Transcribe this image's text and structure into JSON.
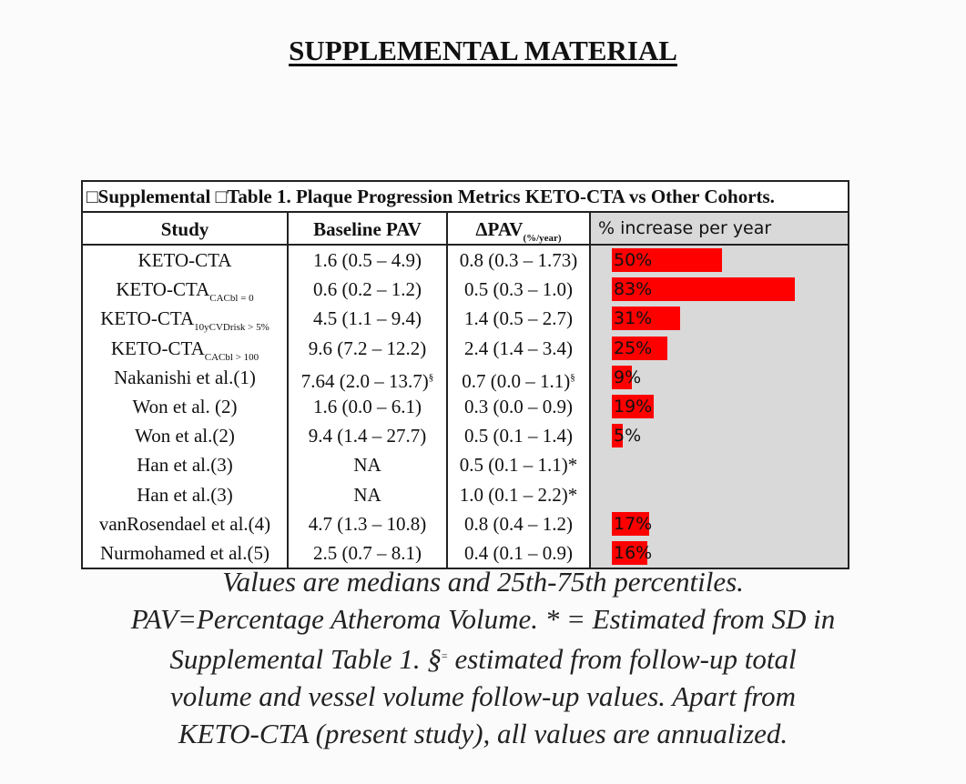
{
  "title": "SUPPLEMENTAL MATERIAL",
  "table": {
    "caption": "□Supplemental □Table 1. Plaque Progression Metrics KETO-CTA vs Other Cohorts.",
    "headers": {
      "study": "Study",
      "baseline": "Baseline PAV",
      "delta": "ΔPAV",
      "delta_unit": "(%/year)",
      "pct": "% increase per year"
    },
    "bar_color": "#ff0000",
    "bar_panel_color": "#d9d9d9",
    "rows": [
      {
        "study": "KETO-CTA",
        "sub": "",
        "baseline": "1.6 (0.5 – 4.9)",
        "baseline_mark": "",
        "delta": "0.8 (0.3 – 1.73)",
        "delta_mark": "",
        "pct_value": 50,
        "pct_label": "50%"
      },
      {
        "study": "KETO-CTA",
        "sub": "CACbl = 0",
        "baseline": "0.6 (0.2 – 1.2)",
        "baseline_mark": "",
        "delta": "0.5 (0.3 – 1.0)",
        "delta_mark": "",
        "pct_value": 83,
        "pct_label": "83%"
      },
      {
        "study": "KETO-CTA",
        "sub": "10yCVDrisk > 5%",
        "baseline": "4.5 (1.1 – 9.4)",
        "baseline_mark": "",
        "delta": "1.4 (0.5 – 2.7)",
        "delta_mark": "",
        "pct_value": 31,
        "pct_label": "31%"
      },
      {
        "study": "KETO-CTA",
        "sub": "CACbl > 100",
        "baseline": "9.6 (7.2 – 12.2)",
        "baseline_mark": "",
        "delta": "2.4 (1.4 – 3.4)",
        "delta_mark": "",
        "pct_value": 25,
        "pct_label": "25%"
      },
      {
        "study": "Nakanishi et al.(1)",
        "sub": "",
        "baseline": "7.64 (2.0 – 13.7)",
        "baseline_mark": "§",
        "delta": "0.7 (0.0 – 1.1)",
        "delta_mark": "§",
        "pct_value": 9,
        "pct_label": "9%"
      },
      {
        "study": "Won et al. (2)",
        "sub": "",
        "baseline": "1.6 (0.0 – 6.1)",
        "baseline_mark": "",
        "delta": "0.3 (0.0 – 0.9)",
        "delta_mark": "",
        "pct_value": 19,
        "pct_label": "19%"
      },
      {
        "study": "Won et al.(2)",
        "sub": "",
        "baseline": "9.4 (1.4 – 27.7)",
        "baseline_mark": "",
        "delta": "0.5 (0.1 – 1.4)",
        "delta_mark": "",
        "pct_value": 5,
        "pct_label": "5%"
      },
      {
        "study": "Han et al.(3)",
        "sub": "",
        "baseline": "NA",
        "baseline_mark": "",
        "delta": "0.5 (0.1 – 1.1)*",
        "delta_mark": "",
        "pct_value": null,
        "pct_label": ""
      },
      {
        "study": "Han et al.(3)",
        "sub": "",
        "baseline": "NA",
        "baseline_mark": "",
        "delta": "1.0 (0.1 – 2.2)*",
        "delta_mark": "",
        "pct_value": null,
        "pct_label": ""
      },
      {
        "study": "vanRosendael et al.(4)",
        "sub": "",
        "baseline": "4.7 (1.3 – 10.8)",
        "baseline_mark": "",
        "delta": "0.8 (0.4 – 1.2)",
        "delta_mark": "",
        "pct_value": 17,
        "pct_label": "17%"
      },
      {
        "study": "Nurmohamed et al.(5)",
        "sub": "",
        "baseline": "2.5 (0.7 – 8.1)",
        "baseline_mark": "",
        "delta": "0.4 (0.1 – 0.9)",
        "delta_mark": "",
        "pct_value": 16,
        "pct_label": "16%"
      }
    ]
  },
  "caption_lines": [
    "Values are medians and 25th-75th percentiles.",
    "PAV=Percentage Atheroma Volume. * = Estimated from SD in",
    "Supplemental Table 1. §",
    "estimated from follow-up total",
    "volume and vessel volume follow-up values. Apart from",
    "KETO-CTA (present study), all values are annualized."
  ],
  "caption_mark": "="
}
